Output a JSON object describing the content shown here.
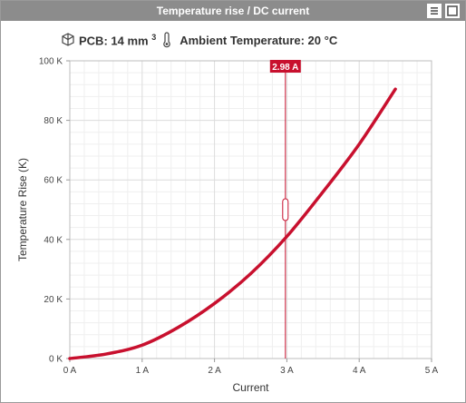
{
  "window": {
    "title": "Temperature rise / DC current"
  },
  "header": {
    "pcb_label": "PCB: 14 mm",
    "pcb_unit_exp": "3",
    "ambient_label": "Ambient Temperature: 20 °C"
  },
  "icons": {
    "pcb": "cube-icon",
    "ambient": "thermometer-icon",
    "menu": "menu-icon",
    "maximize": "maximize-icon"
  },
  "chart_data": {
    "type": "line",
    "xlabel": "Current",
    "ylabel": "Temperature Rise (K)",
    "xlim": [
      0,
      5
    ],
    "ylim": [
      0,
      100
    ],
    "x_ticks": [
      0,
      1,
      2,
      3,
      4,
      5
    ],
    "y_ticks": [
      0,
      20,
      40,
      60,
      80,
      100
    ],
    "x_tick_labels": [
      "0 A",
      "1 A",
      "2 A",
      "3 A",
      "4 A",
      "5 A"
    ],
    "y_tick_labels": [
      "0 K",
      "20 K",
      "40 K",
      "60 K",
      "80 K",
      "100 K"
    ],
    "grid": true,
    "series": [
      {
        "color": "#c8102e",
        "x": [
          0,
          0.5,
          1.0,
          1.5,
          2.0,
          2.5,
          3.0,
          3.5,
          4.0,
          4.5
        ],
        "y": [
          0,
          1.5,
          4.5,
          10.5,
          18.5,
          28.5,
          41,
          56,
          72,
          90.5
        ]
      }
    ],
    "cursor": {
      "x": 2.98,
      "label": "2.98 A",
      "color": "#c8102e"
    }
  }
}
